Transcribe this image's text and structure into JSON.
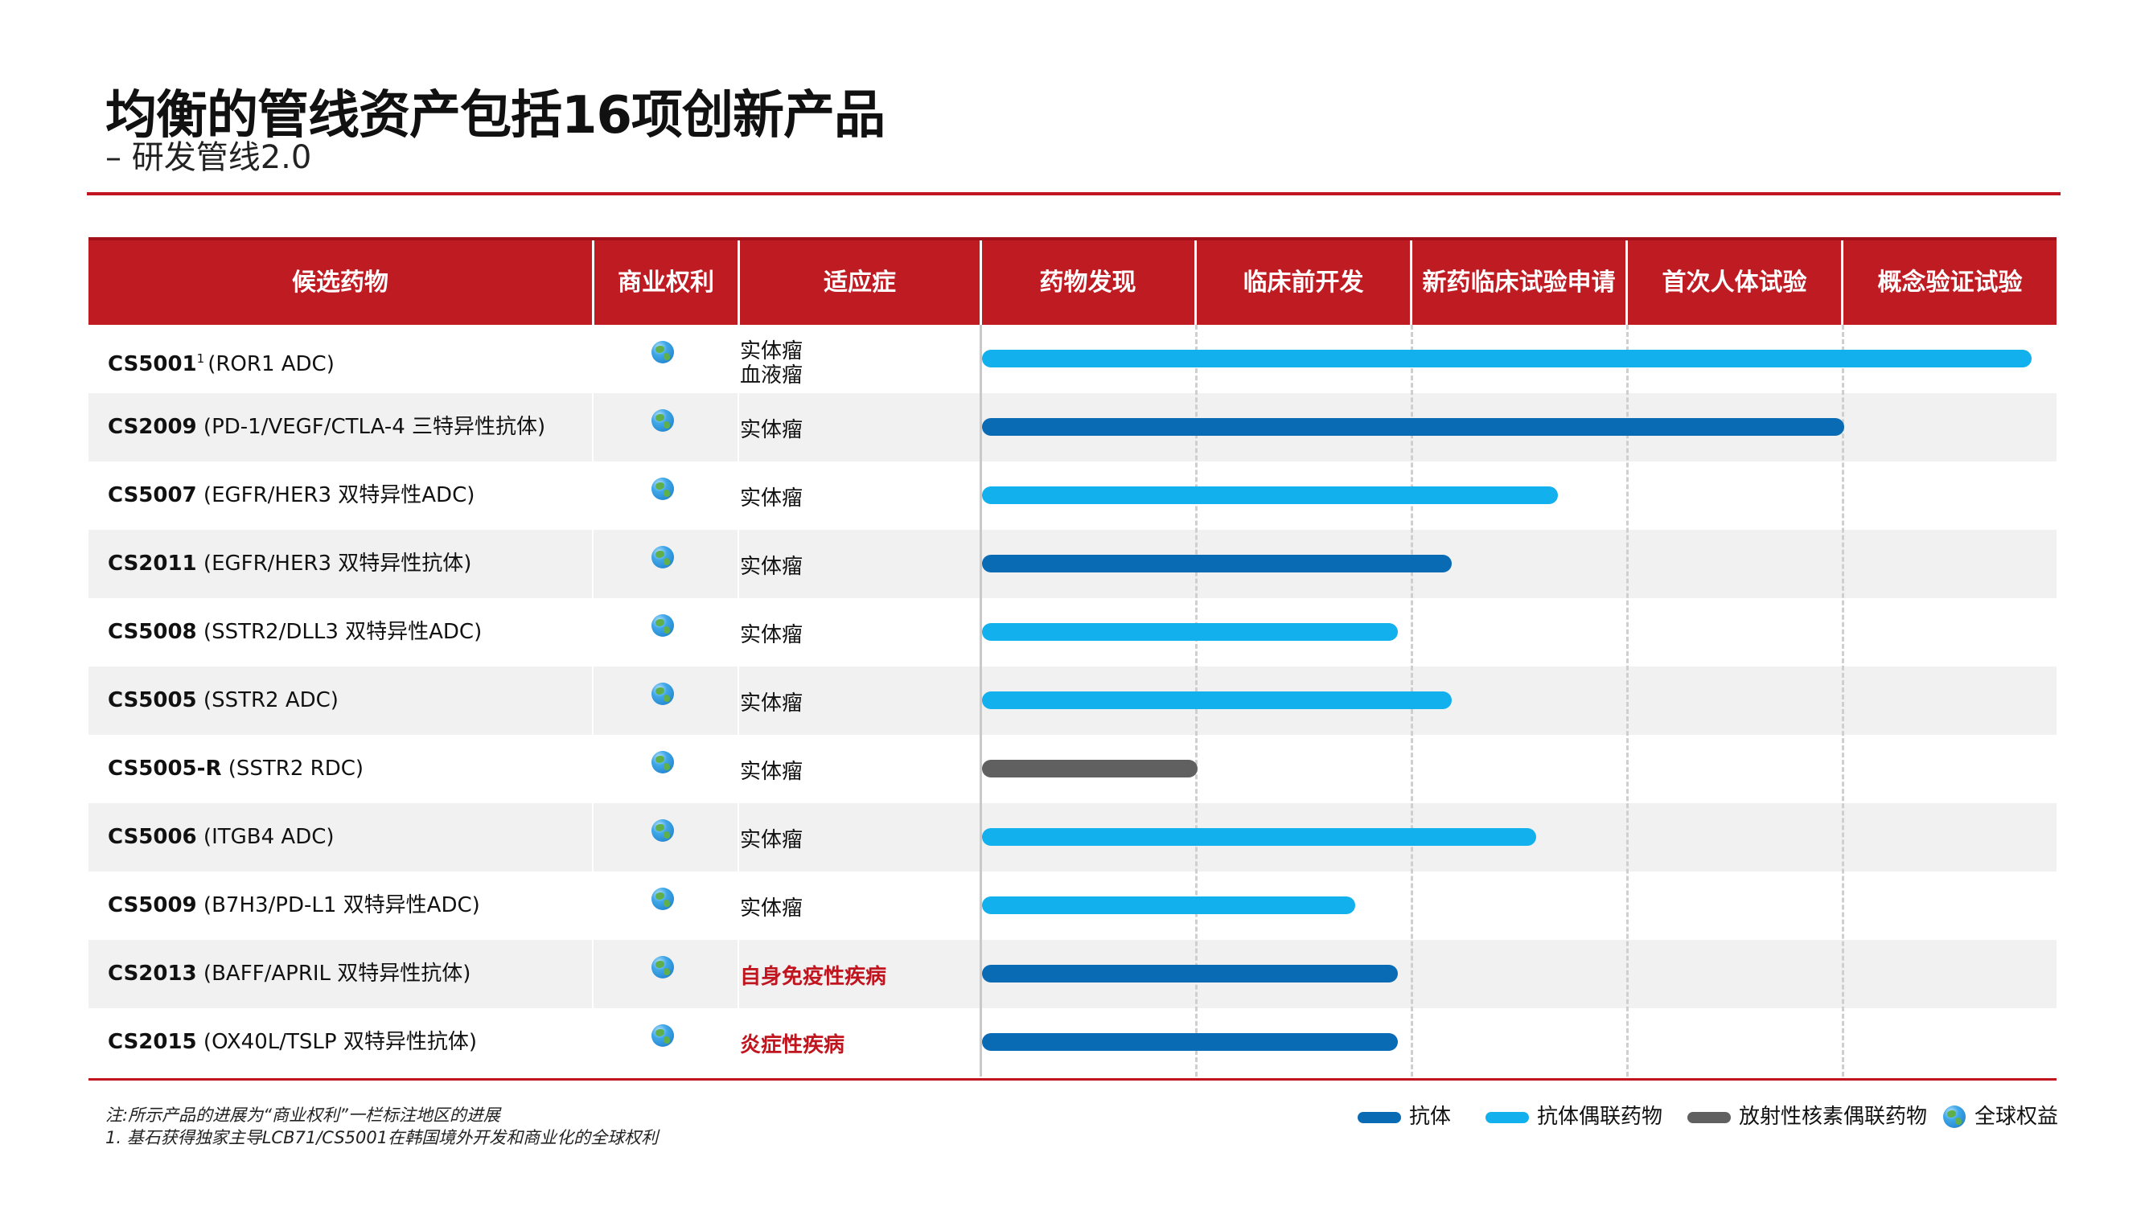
{
  "slide": {
    "title": "均衡的管线资产包括16项创新产品",
    "subtitle": "– 研发管线2.0"
  },
  "colors": {
    "brand_red": "#c0141e",
    "antibody": "#0a6bb5",
    "adc": "#13b0ee",
    "rdc": "#606060"
  },
  "chart_data": {
    "type": "bar",
    "orientation": "horizontal",
    "title": "",
    "columns": {
      "candidate": "候选药物",
      "rights": "商业权利",
      "indication": "适应症"
    },
    "phases": [
      "药物发现",
      "临床前开发",
      "新药临床试验申请",
      "首次人体试验",
      "概念验证试验"
    ],
    "value_unit": "phase progress (0 = start of 药物发现, 5 = end of 概念验证试验)",
    "xlim": [
      0,
      5
    ],
    "rows": [
      {
        "code": "CS5001",
        "sup": "1",
        "desc": "(ROR1 ADC)",
        "rights_icon": "globe-icon",
        "indications": [
          "实体瘤",
          "血液瘤"
        ],
        "indication_highlight": false,
        "modality": "抗体偶联药物",
        "progress": 4.87
      },
      {
        "code": "CS2009",
        "sup": "",
        "desc": "(PD-1/VEGF/CTLA-4 三特异性抗体)",
        "rights_icon": "globe-icon",
        "indications": [
          "实体瘤"
        ],
        "indication_highlight": false,
        "modality": "抗体",
        "progress": 4.0
      },
      {
        "code": "CS5007",
        "sup": "",
        "desc": "(EGFR/HER3 双特异性ADC)",
        "rights_icon": "globe-icon",
        "indications": [
          "实体瘤"
        ],
        "indication_highlight": false,
        "modality": "抗体偶联药物",
        "progress": 2.67
      },
      {
        "code": "CS2011",
        "sup": "",
        "desc": "(EGFR/HER3 双特异性抗体)",
        "rights_icon": "globe-icon",
        "indications": [
          "实体瘤"
        ],
        "indication_highlight": false,
        "modality": "抗体",
        "progress": 2.18
      },
      {
        "code": "CS5008",
        "sup": "",
        "desc": "(SSTR2/DLL3 双特异性ADC)",
        "rights_icon": "globe-icon",
        "indications": [
          "实体瘤"
        ],
        "indication_highlight": false,
        "modality": "抗体偶联药物",
        "progress": 1.93
      },
      {
        "code": "CS5005",
        "sup": "",
        "desc": "(SSTR2 ADC)",
        "rights_icon": "globe-icon",
        "indications": [
          "实体瘤"
        ],
        "indication_highlight": false,
        "modality": "抗体偶联药物",
        "progress": 2.18
      },
      {
        "code": "CS5005-R",
        "sup": "",
        "desc": "(SSTR2 RDC)",
        "rights_icon": "globe-icon",
        "indications": [
          "实体瘤"
        ],
        "indication_highlight": false,
        "modality": "放射性核素偶联药物",
        "progress": 1.0
      },
      {
        "code": "CS5006",
        "sup": "",
        "desc": "(ITGB4 ADC)",
        "rights_icon": "globe-icon",
        "indications": [
          "实体瘤"
        ],
        "indication_highlight": false,
        "modality": "抗体偶联药物",
        "progress": 2.57
      },
      {
        "code": "CS5009",
        "sup": "",
        "desc": "(B7H3/PD-L1 双特异性ADC)",
        "rights_icon": "globe-icon",
        "indications": [
          "实体瘤"
        ],
        "indication_highlight": false,
        "modality": "抗体偶联药物",
        "progress": 1.73
      },
      {
        "code": "CS2013",
        "sup": "",
        "desc": "(BAFF/APRIL 双特异性抗体)",
        "rights_icon": "globe-icon",
        "indications": [
          "自身免疫性疾病"
        ],
        "indication_highlight": true,
        "modality": "抗体",
        "progress": 1.93
      },
      {
        "code": "CS2015",
        "sup": "",
        "desc": "(OX40L/TSLP 双特异性抗体)",
        "rights_icon": "globe-icon",
        "indications": [
          "炎症性疾病"
        ],
        "indication_highlight": true,
        "modality": "抗体",
        "progress": 1.93
      }
    ],
    "legend": [
      {
        "label": "抗体",
        "key": "抗体",
        "color": "#0a6bb5"
      },
      {
        "label": "抗体偶联药物",
        "key": "抗体偶联药物",
        "color": "#13b0ee"
      },
      {
        "label": "放射性核素偶联药物",
        "key": "放射性核素偶联药物",
        "color": "#606060"
      },
      {
        "label": "全球权益",
        "key": "globe",
        "icon": "globe-icon"
      }
    ],
    "legend_position": "bottom-right"
  },
  "notes": [
    "注:所示产品的进展为“商业权利”一栏标注地区的进展",
    "1. 基石获得独家主导LCB71/CS5001在韩国境外开发和商业化的全球权利"
  ]
}
